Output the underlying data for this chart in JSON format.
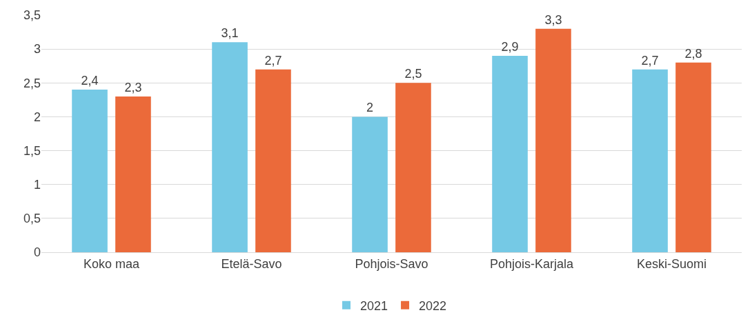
{
  "chart_data": {
    "type": "bar",
    "categories": [
      "Koko maa",
      "Etelä-Savo",
      "Pohjois-Savo",
      "Pohjois-Karjala",
      "Keski-Suomi"
    ],
    "series": [
      {
        "name": "2021",
        "color": "#75c9e5",
        "values": [
          2.4,
          3.1,
          2.0,
          2.9,
          2.7
        ],
        "value_labels": [
          "2,4",
          "3,1",
          "2",
          "2,9",
          "2,7"
        ]
      },
      {
        "name": "2022",
        "color": "#eb6a3a",
        "values": [
          2.3,
          2.7,
          2.5,
          3.3,
          2.8
        ],
        "value_labels": [
          "2,3",
          "2,7",
          "2,5",
          "3,3",
          "2,8"
        ]
      }
    ],
    "ylim": [
      0,
      3.5
    ],
    "yticks": [
      0,
      {
        "value": 0.5,
        "label": "0,5"
      },
      1,
      {
        "value": 1.5,
        "label": "1,5"
      },
      2,
      {
        "value": 2.5,
        "label": "2,5"
      },
      3,
      {
        "value": 3.5,
        "label": "3,5"
      }
    ],
    "grid": "y",
    "legend": "bottom"
  }
}
